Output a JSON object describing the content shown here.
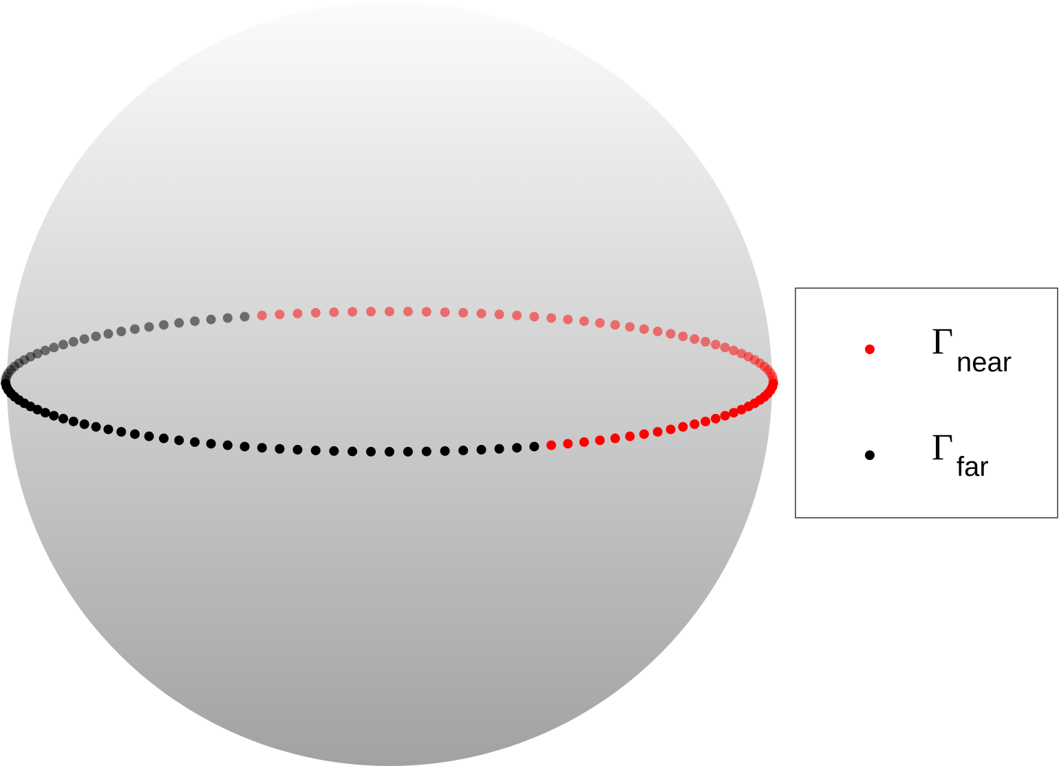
{
  "legend": {
    "items": [
      {
        "symbol": "Γ",
        "subscript": "near"
      },
      {
        "symbol": "Γ",
        "subscript": "far"
      }
    ]
  }
}
